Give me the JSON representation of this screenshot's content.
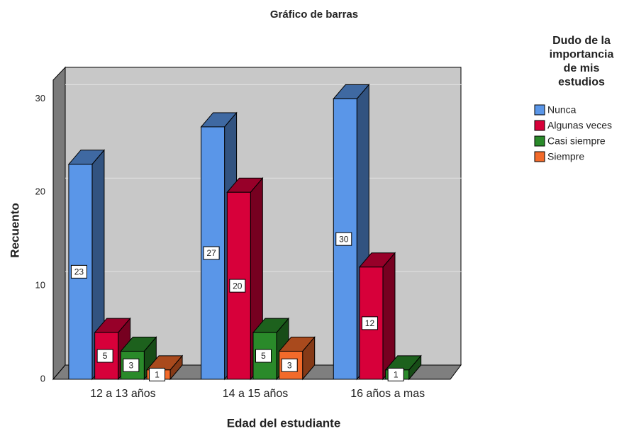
{
  "chart_data": {
    "type": "bar",
    "title": "Gráfico de barras",
    "x_label": "Edad del estudiante",
    "y_label": "Recuento",
    "categories": [
      "12 a 13 años",
      "14 a 15 años",
      "16 años a mas"
    ],
    "legend_title": [
      "Dudo de la",
      "importancia",
      "de mis",
      "estudios"
    ],
    "legend_position": "right",
    "series": [
      {
        "name": "Nunca",
        "color": "#5a96e8",
        "values": [
          23,
          27,
          30
        ]
      },
      {
        "name": "Algunas veces",
        "color": "#d7003a",
        "values": [
          5,
          20,
          12
        ]
      },
      {
        "name": "Casi siempre",
        "color": "#2a8a2a",
        "values": [
          3,
          5,
          1
        ]
      },
      {
        "name": "Siempre",
        "color": "#f26a2a",
        "values": [
          1,
          3,
          null
        ]
      }
    ],
    "ylim": [
      0,
      32
    ],
    "yticks": [
      0,
      10,
      20,
      30
    ],
    "grid": true
  }
}
